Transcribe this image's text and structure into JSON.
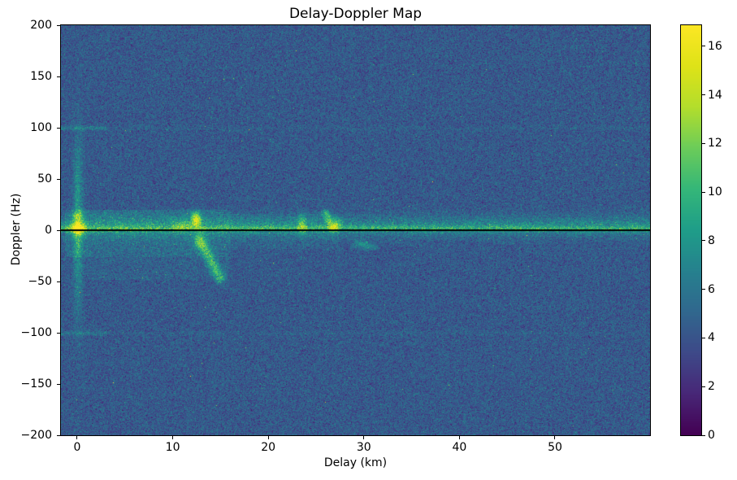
{
  "chart_data": {
    "type": "heatmap",
    "title": "Delay-Doppler Map",
    "xlabel": "Delay (km)",
    "ylabel": "Doppler (Hz)",
    "xlim": [
      -1.7,
      59.95
    ],
    "ylim": [
      -200,
      200
    ],
    "x_ticks": {
      "values": [
        0,
        10,
        20,
        30,
        40,
        50
      ],
      "labels": [
        "0",
        "10",
        "20",
        "30",
        "40",
        "50"
      ]
    },
    "y_ticks": {
      "values": [
        -200,
        -150,
        -100,
        -50,
        0,
        50,
        100,
        150,
        200
      ],
      "labels": [
        "−200",
        "−150",
        "−100",
        "−50",
        "0",
        "50",
        "100",
        "150",
        "200"
      ]
    },
    "colorbar": {
      "vmin": 0,
      "vmax": 16.87,
      "tick_values": [
        0,
        2,
        4,
        6,
        8,
        10,
        12,
        14,
        16
      ],
      "tick_labels": [
        "0",
        "2",
        "4",
        "6",
        "8",
        "10",
        "12",
        "14",
        "16"
      ]
    },
    "colormap": "viridis",
    "colormap_stops": [
      [
        0.0,
        "#440154"
      ],
      [
        0.1,
        "#482878"
      ],
      [
        0.2,
        "#3e4a89"
      ],
      [
        0.3,
        "#31688e"
      ],
      [
        0.4,
        "#26828e"
      ],
      [
        0.5,
        "#1f9e89"
      ],
      [
        0.6,
        "#35b779"
      ],
      [
        0.7,
        "#6dcd59"
      ],
      [
        0.8,
        "#b4de2c"
      ],
      [
        0.9,
        "#dfe318"
      ],
      [
        1.0,
        "#fde725"
      ]
    ],
    "background": "#ffffff",
    "grid": false,
    "legend": "none",
    "zero_doppler_line": {
      "y": 0,
      "color": "#000000"
    },
    "noise": {
      "mean": 4.3,
      "std": 1.15,
      "spike_prob": 0.015,
      "spike_scale": 1.3,
      "seed": 42
    },
    "features": [
      {
        "type": "hband",
        "y": 4,
        "sigma": 7,
        "amp": 3.2,
        "x0": -1.7,
        "x1": 60,
        "speckle": 0.75
      },
      {
        "type": "hband",
        "y": 2,
        "sigma": 2.0,
        "amp": 3.2,
        "x0": -1.7,
        "x1": 60,
        "speckle": 0.6
      },
      {
        "type": "region",
        "x0": -1.3,
        "x1": 16,
        "y0": -26,
        "y1": 20,
        "amp": 1.8
      },
      {
        "type": "region",
        "x0": 16,
        "x1": 27.5,
        "y0": -18,
        "y1": 16,
        "amp": 0.8
      },
      {
        "type": "region",
        "x0": 1,
        "x1": 16,
        "y0": -48,
        "y1": -26,
        "amp": 0.7
      },
      {
        "type": "vband",
        "x": 0.05,
        "sigma": 0.35,
        "ycenter": 5,
        "ysigma": 55,
        "amp": 4.5,
        "speckle": 0.5
      },
      {
        "type": "blob",
        "x": 0.05,
        "y": 2,
        "sx": 0.45,
        "sy": 4,
        "amp": 8.5
      },
      {
        "type": "blob",
        "x": 0.05,
        "y": 14,
        "sx": 0.4,
        "sy": 3,
        "amp": 4
      },
      {
        "type": "blob",
        "x": 12.4,
        "y": 11,
        "sx": 0.35,
        "sy": 5,
        "amp": 9
      },
      {
        "type": "blob",
        "x": 12.7,
        "y": -9,
        "sx": 0.4,
        "sy": 5,
        "amp": 5
      },
      {
        "type": "streak",
        "x0": 13.1,
        "y0": -14,
        "x1": 14.9,
        "y1": -46,
        "w": 0.4,
        "amp": 6,
        "speckle": 0.5
      },
      {
        "type": "blob",
        "x": 10.9,
        "y": 5,
        "sx": 0.6,
        "sy": 4,
        "amp": 3
      },
      {
        "type": "blob",
        "x": 23.5,
        "y": 6,
        "sx": 0.3,
        "sy": 7,
        "amp": 4.5
      },
      {
        "type": "streak",
        "x0": 26.0,
        "y0": 17,
        "x1": 26.7,
        "y1": 2,
        "w": 0.3,
        "amp": 5,
        "speckle": 0.4
      },
      {
        "type": "blob",
        "x": 27.1,
        "y": 6,
        "sx": 0.35,
        "sy": 4,
        "amp": 3.5
      },
      {
        "type": "blob",
        "x": 29.7,
        "y": -13,
        "sx": 0.6,
        "sy": 2.5,
        "amp": 3.2
      },
      {
        "type": "blob",
        "x": 30.6,
        "y": -16,
        "sx": 0.5,
        "sy": 2,
        "amp": 2.4
      },
      {
        "type": "hband",
        "y": 100,
        "sigma": 1.5,
        "amp": 2.2,
        "x0": -1.7,
        "x1": 3,
        "speckle": 0.5
      },
      {
        "type": "hband",
        "y": -100,
        "sigma": 1.5,
        "amp": 1.8,
        "x0": -1.7,
        "x1": 3,
        "speckle": 0.5
      },
      {
        "type": "hband",
        "y": 100,
        "sigma": 1.2,
        "amp": 0.45,
        "x0": 3,
        "x1": 60,
        "speckle": 0.8
      },
      {
        "type": "hband",
        "y": -100,
        "sigma": 1.2,
        "amp": 0.45,
        "x0": 3,
        "x1": 60,
        "speckle": 0.8
      }
    ]
  }
}
